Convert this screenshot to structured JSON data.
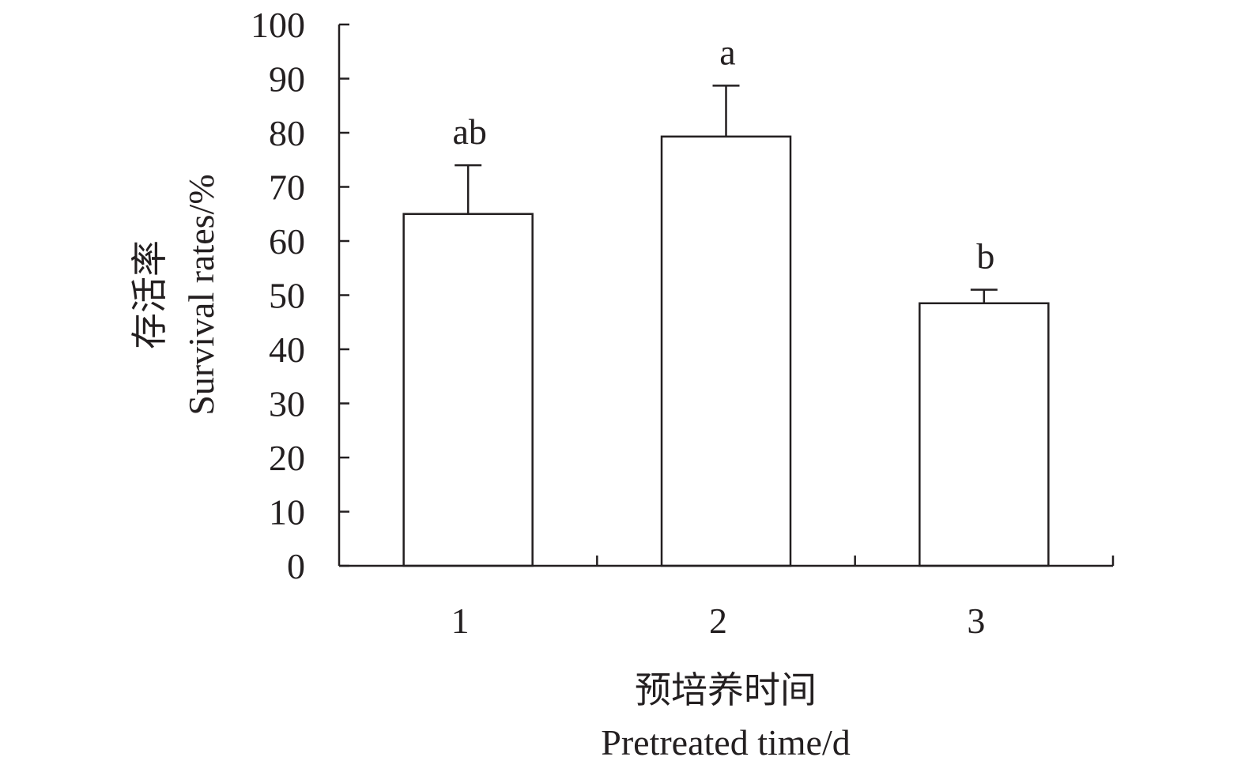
{
  "chart_data": {
    "type": "bar",
    "categories": [
      "1",
      "2",
      "3"
    ],
    "values": [
      65,
      79.3,
      48.5
    ],
    "error_upper": [
      74,
      88.7,
      51
    ],
    "significance_labels": [
      "ab",
      "a",
      "b"
    ],
    "xlabel_cn": "预培养时间",
    "xlabel_en": "Pretreated time/d",
    "ylabel_cn": "存活率",
    "ylabel_en": "Survival rates/%",
    "ylim": [
      0,
      100
    ],
    "yticks": [
      0,
      10,
      20,
      30,
      40,
      50,
      60,
      70,
      80,
      90,
      100
    ],
    "grid": false,
    "legend": "none",
    "colors": {
      "bar_fill": "#ffffff",
      "stroke": "#231f20"
    }
  }
}
